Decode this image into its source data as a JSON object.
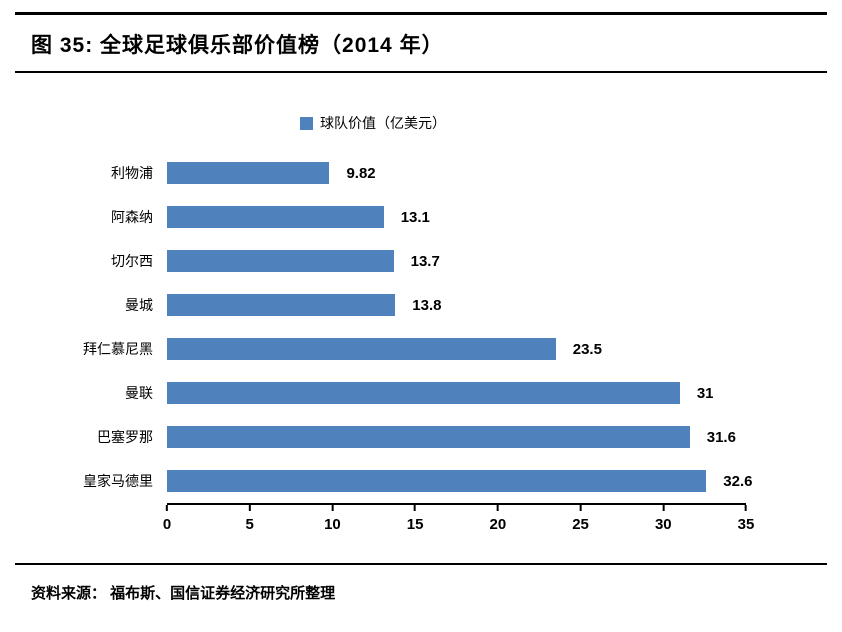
{
  "header": {
    "title": "图 35:  全球足球俱乐部价值榜（2014 年）"
  },
  "chart_data": {
    "type": "bar",
    "orientation": "horizontal",
    "title": "图 35: 全球足球俱乐部价值榜（2014 年）",
    "legend": [
      {
        "label": "球队价值（亿美元）",
        "color": "#4F81BD"
      }
    ],
    "legend_position": "top",
    "categories": [
      "利物浦",
      "阿森纳",
      "切尔西",
      "曼城",
      "拜仁慕尼黑",
      "曼联",
      "巴塞罗那",
      "皇家马德里"
    ],
    "values": [
      9.82,
      13.1,
      13.7,
      13.8,
      23.5,
      31,
      31.6,
      32.6
    ],
    "value_labels": [
      "9.82",
      "13.1",
      "13.7",
      "13.8",
      "23.5",
      "31",
      "31.6",
      "32.6"
    ],
    "xlabel": "",
    "ylabel": "",
    "xlim": [
      0,
      35
    ],
    "x_ticks": [
      0,
      5,
      10,
      15,
      20,
      25,
      30,
      35
    ],
    "bar_color": "#4F81BD",
    "grid": false
  },
  "footer": {
    "source": "资料来源： 福布斯、国信证券经济研究所整理"
  }
}
